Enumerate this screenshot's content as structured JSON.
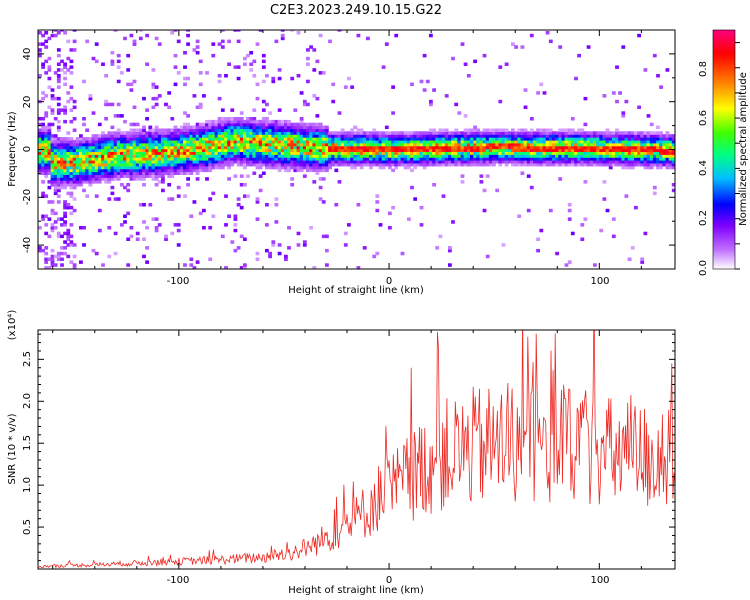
{
  "title": "C2E3.2023.249.10.15.G22",
  "chart_data": [
    {
      "type": "heatmap",
      "xlabel": "Height of straight line (km)",
      "ylabel": "Frequency (Hz)",
      "xlim": [
        -167,
        136
      ],
      "ylim": [
        -50,
        50
      ],
      "xticks": [
        "-100",
        "0",
        "100"
      ],
      "yticks": [
        "-40",
        "-20",
        "0",
        "20",
        "40"
      ],
      "colorbar": {
        "label": "Normalized spectral amplitude",
        "range": [
          0.0,
          0.95
        ],
        "ticks": [
          "0.0",
          "0.2",
          "0.4",
          "0.6",
          "0.8"
        ],
        "colors": [
          "#ffffff",
          "#8000ff",
          "#0000ff",
          "#00c0ff",
          "#00ff80",
          "#40ff00",
          "#ffff00",
          "#ff8000",
          "#ff0000",
          "#ff0080"
        ]
      },
      "ridge": {
        "center_hz": [
          [
            -162,
            -6
          ],
          [
            -150,
            -6
          ],
          [
            -130,
            -3
          ],
          [
            -110,
            -2
          ],
          [
            -90,
            0
          ],
          [
            -75,
            3
          ],
          [
            -60,
            2
          ],
          [
            -45,
            1
          ],
          [
            -30,
            0
          ],
          [
            0,
            -0.5
          ],
          [
            50,
            0.5
          ],
          [
            100,
            0
          ],
          [
            136,
            -1
          ]
        ]
      }
    },
    {
      "type": "line",
      "xlabel": "Height of straight line (km)",
      "ylabel": "SNR (10 * v/v)",
      "multiplier": "(x10⁴)",
      "xlim": [
        -167,
        136
      ],
      "ylim": [
        0,
        2.85
      ],
      "xticks": [
        "-100",
        "0",
        "100"
      ],
      "yticks": [
        "0.5",
        "1.0",
        "1.5",
        "2.0",
        "2.5"
      ],
      "color": "#ee2a24",
      "trend": {
        "x": [
          -167,
          -140,
          -120,
          -100,
          -80,
          -60,
          -45,
          -35,
          -25,
          -15,
          -5,
          5,
          15,
          25,
          40,
          60,
          80,
          100,
          115,
          136
        ],
        "y": [
          0.03,
          0.05,
          0.07,
          0.09,
          0.11,
          0.14,
          0.2,
          0.3,
          0.45,
          0.6,
          0.85,
          1.0,
          1.2,
          1.35,
          1.45,
          1.5,
          1.45,
          1.4,
          1.35,
          1.3
        ]
      }
    }
  ]
}
